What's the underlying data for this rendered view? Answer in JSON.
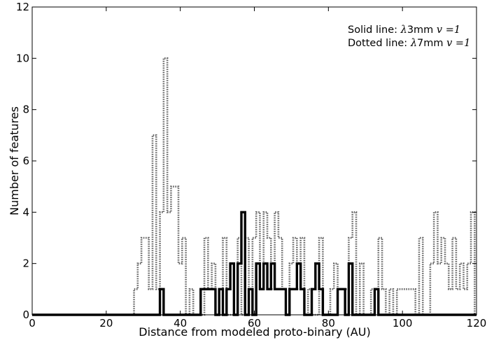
{
  "chart_data": {
    "type": "histogram",
    "xlabel": "Distance from modeled proto-binary (AU)",
    "ylabel": "Number of features",
    "xlim": [
      0,
      120
    ],
    "ylim": [
      0,
      12
    ],
    "xticks": [
      0,
      20,
      40,
      60,
      80,
      100,
      120
    ],
    "yticks": [
      0,
      2,
      4,
      6,
      8,
      10,
      12
    ],
    "xtick_labels": [
      "0",
      "20",
      "40",
      "60",
      "80",
      "100",
      "120"
    ],
    "ytick_labels": [
      "0",
      "2",
      "4",
      "6",
      "8",
      "10",
      "12"
    ],
    "grid": false,
    "legend_placement": "top-right",
    "legend": [
      {
        "prefix": "Solid line: ",
        "lambda": "λ",
        "band": "3mm ",
        "v": "v",
        "eq": " =1"
      },
      {
        "prefix": "Dotted line: ",
        "lambda": "λ",
        "band": "7mm ",
        "v": "v",
        "eq": " =1"
      }
    ],
    "series": [
      {
        "style": "solid",
        "color": "#000000",
        "steps": [
          [
            0,
            0
          ],
          [
            34.5,
            1
          ],
          [
            35.5,
            0
          ],
          [
            45.5,
            1
          ],
          [
            48.5,
            1
          ],
          [
            49.5,
            0
          ],
          [
            50.5,
            1
          ],
          [
            51.5,
            0
          ],
          [
            52.5,
            1
          ],
          [
            53.5,
            2
          ],
          [
            54.5,
            0
          ],
          [
            55.5,
            2
          ],
          [
            56.5,
            4
          ],
          [
            57.5,
            0
          ],
          [
            58.5,
            1
          ],
          [
            59.5,
            0
          ],
          [
            60.5,
            2
          ],
          [
            61.5,
            1
          ],
          [
            62.5,
            2
          ],
          [
            63.5,
            1
          ],
          [
            64.5,
            2
          ],
          [
            65.5,
            1
          ],
          [
            68.5,
            0
          ],
          [
            69.5,
            1
          ],
          [
            71.5,
            2
          ],
          [
            72.5,
            1
          ],
          [
            73.5,
            0
          ],
          [
            75.5,
            1
          ],
          [
            76.5,
            2
          ],
          [
            77.5,
            1
          ],
          [
            78.5,
            0
          ],
          [
            82.5,
            1
          ],
          [
            84.5,
            0
          ],
          [
            85.5,
            2
          ],
          [
            86.5,
            0
          ],
          [
            92.5,
            1
          ],
          [
            93.5,
            0
          ],
          [
            120,
            0
          ]
        ]
      },
      {
        "style": "dotted",
        "color": "#666666",
        "steps": [
          [
            0,
            0
          ],
          [
            27.5,
            1
          ],
          [
            28.5,
            2
          ],
          [
            29.5,
            3
          ],
          [
            31.5,
            1
          ],
          [
            32.5,
            7
          ],
          [
            33.5,
            1
          ],
          [
            34.5,
            4
          ],
          [
            35.5,
            10
          ],
          [
            36.5,
            4
          ],
          [
            37.5,
            5
          ],
          [
            39.5,
            2
          ],
          [
            40.5,
            3
          ],
          [
            41.5,
            0
          ],
          [
            42.5,
            1
          ],
          [
            43.5,
            0
          ],
          [
            46.5,
            3
          ],
          [
            47.5,
            1
          ],
          [
            48.5,
            2
          ],
          [
            49.5,
            0
          ],
          [
            51.5,
            3
          ],
          [
            52.5,
            0
          ],
          [
            55.5,
            3
          ],
          [
            56.5,
            0
          ],
          [
            57.5,
            3
          ],
          [
            58.5,
            0
          ],
          [
            59.5,
            3
          ],
          [
            60.5,
            4
          ],
          [
            61.5,
            1
          ],
          [
            62.5,
            4
          ],
          [
            63.5,
            3
          ],
          [
            64.5,
            1
          ],
          [
            65.5,
            4
          ],
          [
            66.5,
            3
          ],
          [
            67.5,
            1
          ],
          [
            68.5,
            0
          ],
          [
            69.5,
            2
          ],
          [
            70.5,
            3
          ],
          [
            71.5,
            1
          ],
          [
            72.5,
            3
          ],
          [
            73.5,
            0
          ],
          [
            74.5,
            1
          ],
          [
            75.5,
            0
          ],
          [
            77.5,
            3
          ],
          [
            78.5,
            0
          ],
          [
            80.5,
            1
          ],
          [
            81.5,
            2
          ],
          [
            82.5,
            1
          ],
          [
            84.5,
            1
          ],
          [
            85.5,
            3
          ],
          [
            86.5,
            4
          ],
          [
            87.5,
            0
          ],
          [
            88.5,
            2
          ],
          [
            89.5,
            0
          ],
          [
            91.5,
            1
          ],
          [
            92.5,
            0
          ],
          [
            93.5,
            3
          ],
          [
            94.5,
            1
          ],
          [
            95.5,
            0
          ],
          [
            96.5,
            1
          ],
          [
            97.5,
            0
          ],
          [
            98.5,
            1
          ],
          [
            99.5,
            1
          ],
          [
            100.5,
            1
          ],
          [
            101.5,
            1
          ],
          [
            102.5,
            1
          ],
          [
            103.5,
            0
          ],
          [
            104.5,
            3
          ],
          [
            105.5,
            0
          ],
          [
            107.5,
            2
          ],
          [
            108.5,
            4
          ],
          [
            109.5,
            2
          ],
          [
            110.5,
            3
          ],
          [
            111.5,
            2
          ],
          [
            112.5,
            1
          ],
          [
            113.5,
            3
          ],
          [
            114.5,
            1
          ],
          [
            115.5,
            2
          ],
          [
            116.5,
            1
          ],
          [
            117.5,
            2
          ],
          [
            118.5,
            4
          ],
          [
            119.5,
            0
          ],
          [
            120,
            0
          ]
        ]
      }
    ]
  }
}
